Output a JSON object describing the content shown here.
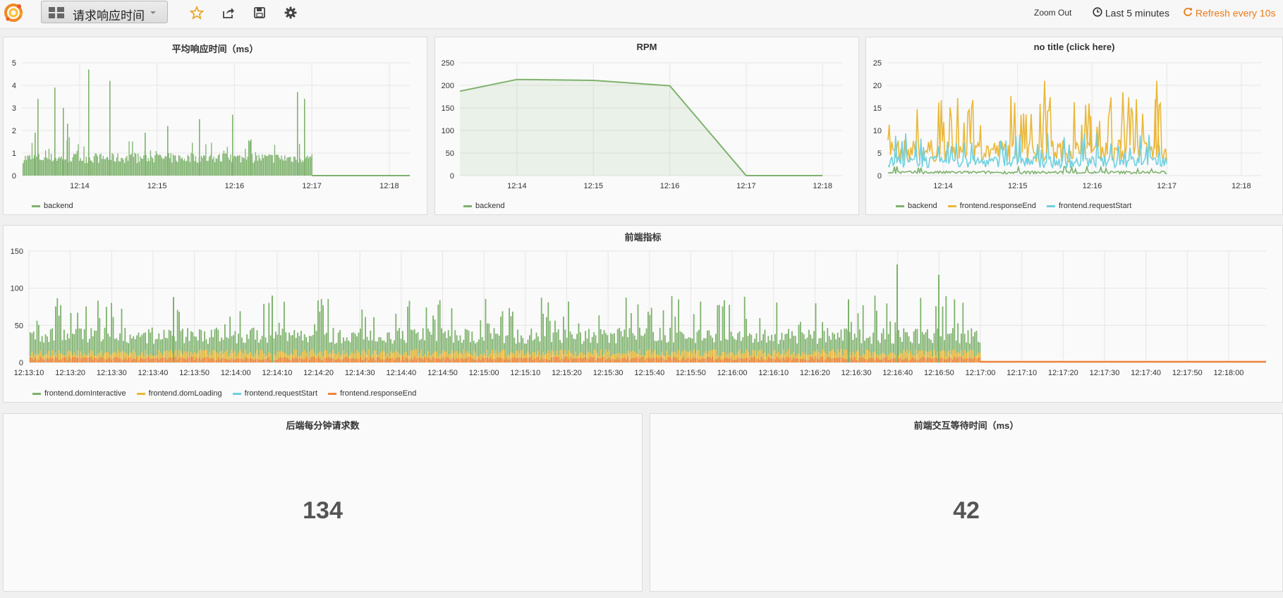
{
  "nav": {
    "dashboard_title": "请求响应时间",
    "zoom_out": "Zoom Out",
    "time_range": "Last 5 minutes",
    "refresh": "Refresh every 10s"
  },
  "colors": {
    "green": "#7eb26d",
    "yellow": "#eab839",
    "cyan": "#6ed0e0",
    "orange": "#ef843c",
    "accent": "#eb7b18"
  },
  "panels": {
    "avg_response": {
      "title": "平均响应时间（ms）",
      "legend": [
        "backend"
      ]
    },
    "rpm": {
      "title": "RPM",
      "legend": [
        "backend"
      ]
    },
    "no_title": {
      "title": "no title (click here)",
      "legend": [
        "backend",
        "frontend.responseEnd",
        "frontend.requestStart"
      ]
    },
    "frontend_metrics": {
      "title": "前端指标",
      "legend": [
        "frontend.domInteractive",
        "frontend.domLoading",
        "frontend.requestStart",
        "frontend.responseEnd"
      ]
    },
    "backend_rpm": {
      "title": "后端每分钟请求数",
      "value": "134"
    },
    "frontend_wait": {
      "title": "前端交互等待时间（ms）",
      "value": "42"
    }
  },
  "chart_data": [
    {
      "type": "bar",
      "title": "平均响应时间（ms）",
      "x_ticks": [
        "12:14",
        "12:15",
        "12:16",
        "12:17",
        "12:18"
      ],
      "y_ticks": [
        "0",
        "1",
        "2",
        "3",
        "4",
        "5"
      ],
      "ylim": [
        0,
        5
      ],
      "series": [
        {
          "name": "backend",
          "color": "#7eb26d",
          "typical_value": 0.7,
          "peak_value": 4.7,
          "data_end": "12:17"
        }
      ]
    },
    {
      "type": "area",
      "title": "RPM",
      "x": [
        "12:13:10",
        "12:14",
        "12:15",
        "12:16",
        "12:17",
        "12:18"
      ],
      "x_ticks": [
        "12:14",
        "12:15",
        "12:16",
        "12:17",
        "12:18"
      ],
      "y_ticks": [
        "0",
        "50",
        "100",
        "150",
        "200",
        "250"
      ],
      "ylim": [
        0,
        250
      ],
      "series": [
        {
          "name": "backend",
          "color": "#7eb26d",
          "values": [
            187,
            213,
            211,
            199,
            0,
            0
          ]
        }
      ]
    },
    {
      "type": "line",
      "title": "no title (click here)",
      "x_ticks": [
        "12:14",
        "12:15",
        "12:16",
        "12:17",
        "12:18"
      ],
      "y_ticks": [
        "0",
        "5",
        "10",
        "15",
        "20",
        "25"
      ],
      "ylim": [
        0,
        25
      ],
      "series": [
        {
          "name": "backend",
          "color": "#7eb26d",
          "typical_value": 0.6
        },
        {
          "name": "frontend.responseEnd",
          "color": "#eab839",
          "typical_value": 5,
          "peak_value": 21
        },
        {
          "name": "frontend.requestStart",
          "color": "#6ed0e0",
          "typical_value": 3,
          "peak_value": 13
        }
      ]
    },
    {
      "type": "bar",
      "title": "前端指标",
      "x_ticks": [
        "12:13:10",
        "12:13:20",
        "12:13:30",
        "12:13:40",
        "12:13:50",
        "12:14:00",
        "12:14:10",
        "12:14:20",
        "12:14:30",
        "12:14:40",
        "12:14:50",
        "12:15:00",
        "12:15:10",
        "12:15:20",
        "12:15:30",
        "12:15:40",
        "12:15:50",
        "12:16:00",
        "12:16:10",
        "12:16:20",
        "12:16:30",
        "12:16:40",
        "12:16:50",
        "12:17:00",
        "12:17:10",
        "12:17:20",
        "12:17:30",
        "12:17:40",
        "12:17:50",
        "12:18:00"
      ],
      "y_ticks": [
        "0",
        "50",
        "100",
        "150"
      ],
      "ylim": [
        0,
        150
      ],
      "series": [
        {
          "name": "frontend.domInteractive",
          "color": "#7eb26d",
          "typical_value": 35,
          "peak_value": 132
        },
        {
          "name": "frontend.domLoading",
          "color": "#eab839",
          "typical_value": 12
        },
        {
          "name": "frontend.requestStart",
          "color": "#6ed0e0",
          "typical_value": 3
        },
        {
          "name": "frontend.responseEnd",
          "color": "#ef843c",
          "typical_value": 5
        }
      ]
    }
  ]
}
